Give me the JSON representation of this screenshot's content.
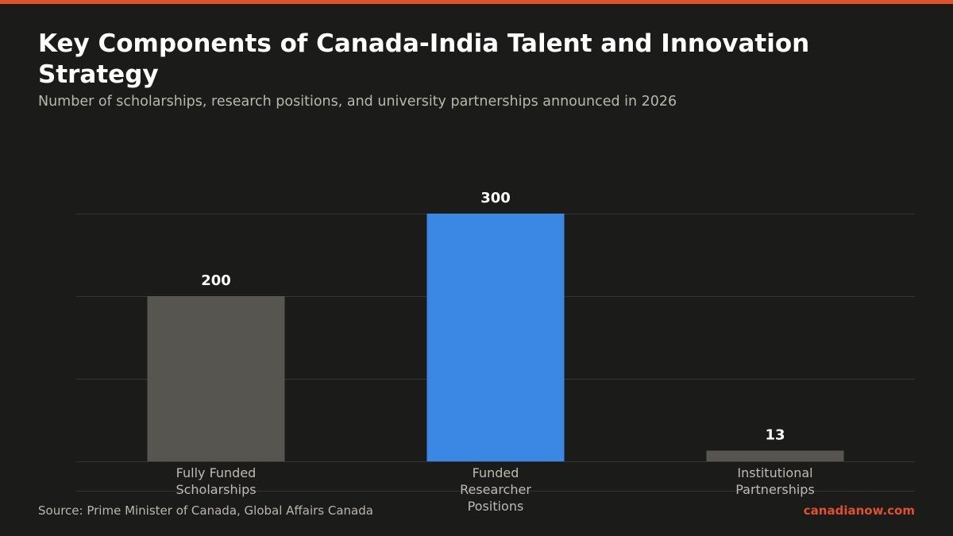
{
  "header": {
    "title": "Key Components of Canada-India Talent and Innovation Strategy",
    "subtitle": "Number of scholarships, research positions, and university partnerships announced in 2026"
  },
  "footer": {
    "source": "Source: Prime Minister of Canada, Global Affairs Canada",
    "brand": "canadianow.com"
  },
  "colors": {
    "accent": "#e0522a",
    "highlight": "#3a87e4",
    "muted_bar": "#56554f",
    "gridline": "#34332f"
  },
  "chart_data": {
    "type": "bar",
    "categories": [
      "Fully Funded Scholarships",
      "Funded Researcher Positions",
      "Institutional Partnerships"
    ],
    "category_lines": [
      [
        "Fully Funded",
        "Scholarships"
      ],
      [
        "Funded",
        "Researcher",
        "Positions"
      ],
      [
        "Institutional",
        "Partnerships"
      ]
    ],
    "values": [
      200,
      300,
      13
    ],
    "value_labels": [
      "200",
      "300",
      "13"
    ],
    "highlight_index": 1,
    "ylim": [
      0,
      300
    ],
    "grid": true,
    "gridline_values": [
      0,
      100,
      200,
      300
    ],
    "y_tick_labels_visible": false,
    "title": "Key Components of Canada-India Talent and Innovation Strategy",
    "xlabel": "",
    "ylabel": ""
  }
}
